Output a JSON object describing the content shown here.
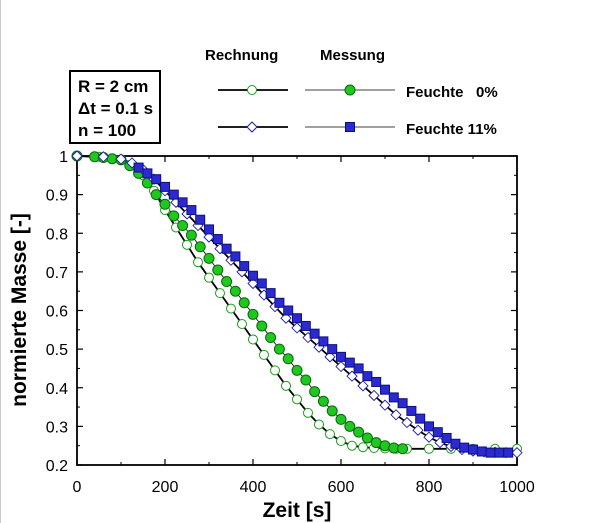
{
  "chart_data": {
    "type": "scatter",
    "xlabel": "Zeit [s]",
    "ylabel": "normierte Masse [-]",
    "xlim": [
      0,
      1000
    ],
    "ylim": [
      0.2,
      1.0
    ],
    "xticks": [
      0,
      200,
      400,
      600,
      800,
      1000
    ],
    "yticks": [
      0.2,
      0.3,
      0.4,
      0.5,
      0.6,
      0.7,
      0.8,
      0.9,
      1.0
    ],
    "grid": false,
    "legend_header": {
      "calc": "Rechnung",
      "meas": "Messung"
    },
    "legend_entries": [
      {
        "label": "Feuchte   0%"
      },
      {
        "label": "Feuchte 11%"
      }
    ],
    "params": [
      "R = 2 cm",
      "Δt = 0.1 s",
      "n  = 100"
    ],
    "series": [
      {
        "name": "Rechnung Feuchte 0%",
        "kind": "calc",
        "color": "#1a9e1a",
        "marker": "circle-open",
        "x": [
          0,
          50,
          100,
          125,
          150,
          175,
          200,
          225,
          250,
          275,
          300,
          325,
          350,
          375,
          400,
          425,
          450,
          475,
          500,
          525,
          550,
          575,
          600,
          625,
          650,
          675,
          700,
          725,
          750,
          800,
          850,
          900,
          950,
          1000
        ],
        "y": [
          1.0,
          0.998,
          0.99,
          0.975,
          0.95,
          0.91,
          0.86,
          0.815,
          0.77,
          0.725,
          0.685,
          0.645,
          0.605,
          0.565,
          0.525,
          0.485,
          0.445,
          0.405,
          0.37,
          0.335,
          0.305,
          0.28,
          0.262,
          0.25,
          0.246,
          0.244,
          0.243,
          0.242,
          0.242,
          0.242,
          0.242,
          0.242,
          0.242,
          0.242
        ]
      },
      {
        "name": "Messung Feuchte 0%",
        "kind": "meas",
        "color": "#1a9e1a",
        "marker": "circle-filled",
        "x": [
          0,
          40,
          60,
          80,
          100,
          120,
          140,
          160,
          180,
          200,
          220,
          240,
          260,
          280,
          300,
          320,
          340,
          360,
          380,
          400,
          420,
          440,
          460,
          480,
          500,
          520,
          540,
          560,
          580,
          600,
          620,
          640,
          660,
          680,
          700,
          720,
          740
        ],
        "y": [
          1.0,
          0.998,
          0.996,
          0.993,
          0.99,
          0.975,
          0.955,
          0.93,
          0.9,
          0.875,
          0.845,
          0.82,
          0.795,
          0.765,
          0.735,
          0.705,
          0.675,
          0.65,
          0.62,
          0.59,
          0.56,
          0.53,
          0.5,
          0.475,
          0.445,
          0.42,
          0.39,
          0.365,
          0.34,
          0.318,
          0.3,
          0.285,
          0.27,
          0.258,
          0.25,
          0.244,
          0.242
        ]
      },
      {
        "name": "Rechnung Feuchte 11%",
        "kind": "calc",
        "color": "#1a1ab0",
        "marker": "diamond-open",
        "x": [
          0,
          60,
          100,
          125,
          150,
          175,
          200,
          225,
          250,
          275,
          300,
          325,
          350,
          375,
          400,
          425,
          450,
          475,
          500,
          525,
          550,
          575,
          600,
          625,
          650,
          675,
          700,
          725,
          750,
          775,
          800,
          825,
          850,
          875,
          900,
          925,
          950,
          975,
          1000
        ],
        "y": [
          1.0,
          0.998,
          0.992,
          0.982,
          0.965,
          0.94,
          0.91,
          0.88,
          0.85,
          0.82,
          0.79,
          0.76,
          0.73,
          0.7,
          0.67,
          0.64,
          0.61,
          0.58,
          0.555,
          0.53,
          0.505,
          0.48,
          0.455,
          0.43,
          0.405,
          0.38,
          0.355,
          0.33,
          0.31,
          0.29,
          0.272,
          0.258,
          0.248,
          0.24,
          0.236,
          0.234,
          0.233,
          0.232,
          0.232
        ]
      },
      {
        "name": "Messung Feuchte 11%",
        "kind": "meas",
        "color": "#2a2ad0",
        "marker": "square-filled",
        "x": [
          140,
          160,
          180,
          200,
          220,
          240,
          260,
          280,
          300,
          320,
          340,
          360,
          380,
          400,
          420,
          440,
          460,
          480,
          500,
          520,
          540,
          560,
          580,
          600,
          620,
          640,
          660,
          680,
          700,
          720,
          740,
          760,
          780,
          800,
          820,
          840,
          860,
          880,
          900,
          920,
          940,
          960,
          980
        ],
        "y": [
          0.97,
          0.955,
          0.94,
          0.92,
          0.9,
          0.88,
          0.86,
          0.835,
          0.81,
          0.785,
          0.76,
          0.74,
          0.715,
          0.69,
          0.67,
          0.645,
          0.62,
          0.6,
          0.58,
          0.56,
          0.54,
          0.52,
          0.5,
          0.48,
          0.465,
          0.45,
          0.43,
          0.415,
          0.395,
          0.375,
          0.36,
          0.34,
          0.32,
          0.3,
          0.285,
          0.27,
          0.255,
          0.245,
          0.24,
          0.235,
          0.232,
          0.232,
          0.232
        ]
      }
    ]
  }
}
